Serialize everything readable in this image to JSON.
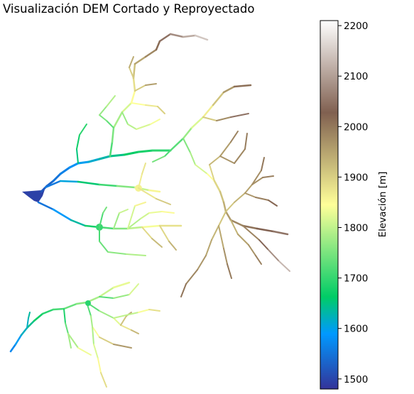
{
  "chart_data": {
    "type": "heatmap",
    "title": "Visualización DEM Cortado y Reproyectado",
    "colorbar": {
      "label": "Elevación [m]",
      "range": [
        1480,
        2210
      ],
      "ticks": [
        1500,
        1600,
        1700,
        1800,
        1900,
        2000,
        2100,
        2200
      ],
      "tick_labels": [
        "1500",
        "1600",
        "1700",
        "1800",
        "1900",
        "2000",
        "2100",
        "2200"
      ],
      "colormap": "terrain"
    },
    "axes_visible": false,
    "content": "river network elevation raster"
  }
}
